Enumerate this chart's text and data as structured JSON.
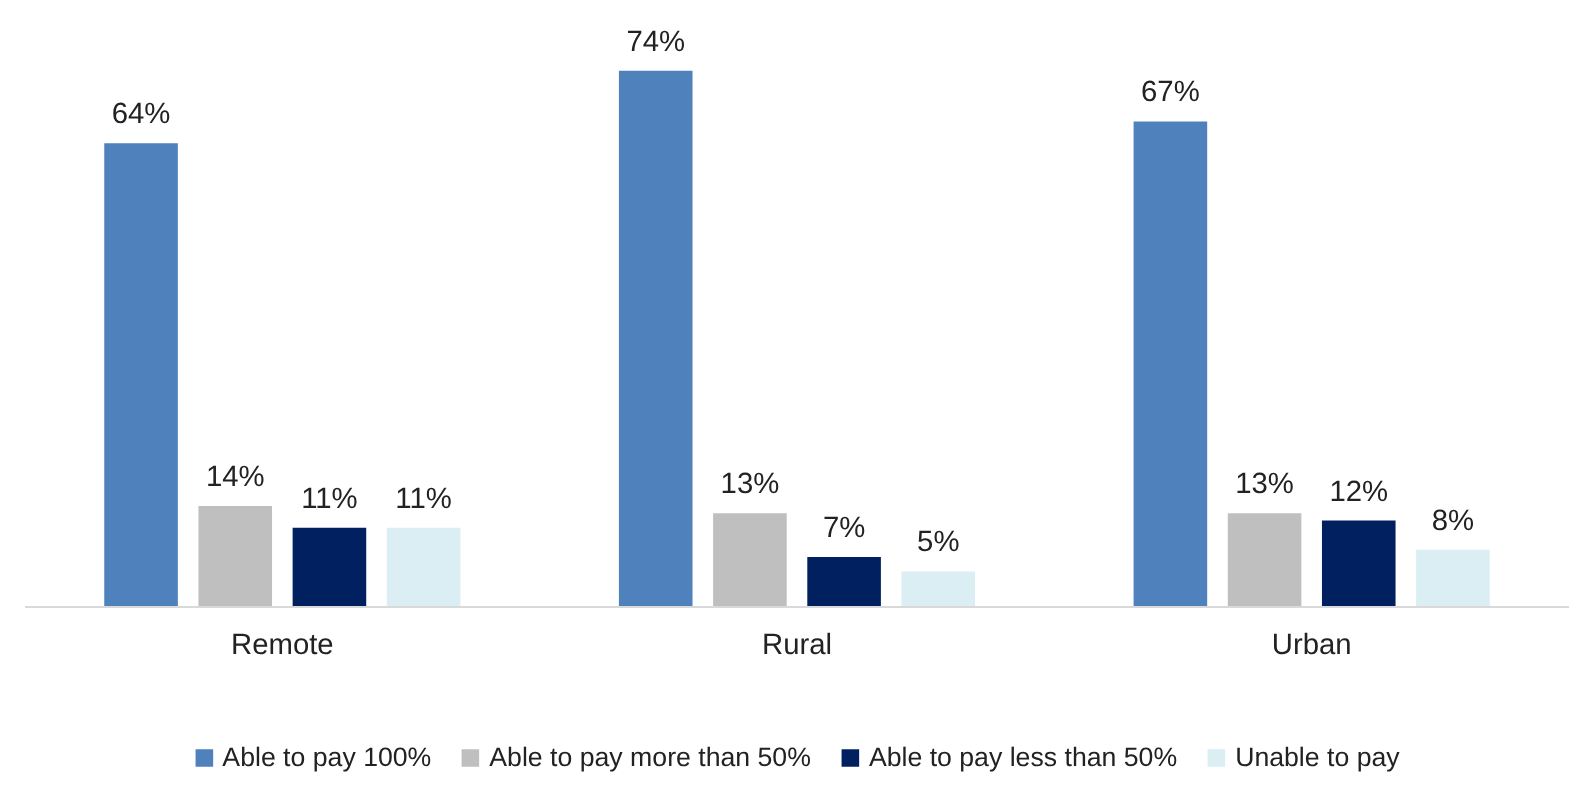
{
  "chart_data": {
    "type": "bar",
    "categories": [
      "Remote",
      "Rural",
      "Urban"
    ],
    "legend": "bottom",
    "series": [
      {
        "name": "Able to pay 100%",
        "color": "#4f81bd",
        "values": [
          64,
          74,
          67
        ],
        "value_labels": [
          "64%",
          "74%",
          "67%"
        ]
      },
      {
        "name": "Able to pay more than 50%",
        "color": "#bfbfbf",
        "values": [
          14,
          13,
          13
        ],
        "value_labels": [
          "14%",
          "13%",
          "13%"
        ]
      },
      {
        "name": "Able to pay less than 50%",
        "color": "#002060",
        "values": [
          11,
          7,
          12
        ],
        "value_labels": [
          "11%",
          "7%",
          "12%"
        ]
      },
      {
        "name": "Unable to pay",
        "color": "#daeef3",
        "values": [
          11,
          5,
          8
        ],
        "value_labels": [
          "11%",
          "5%",
          "8%"
        ]
      }
    ]
  }
}
